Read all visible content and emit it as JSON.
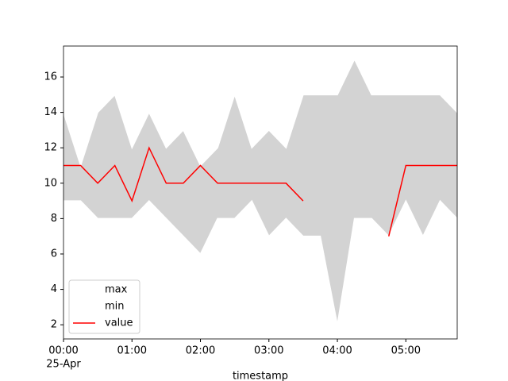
{
  "chart_data": {
    "type": "band_line",
    "x": [
      0,
      0.25,
      0.5,
      0.75,
      1,
      1.25,
      1.5,
      1.75,
      2,
      2.25,
      2.5,
      2.75,
      3,
      3.25,
      3.5,
      3.75,
      4,
      4.25,
      4.5,
      4.75,
      5,
      5.25,
      5.5,
      5.75
    ],
    "series": [
      {
        "name": "max",
        "color": "#ffffff",
        "values": [
          14,
          11,
          14,
          15,
          12,
          14,
          12,
          13,
          11,
          12,
          15,
          12,
          13,
          12,
          15,
          15,
          15,
          17,
          15,
          15,
          15,
          15,
          15,
          14
        ]
      },
      {
        "name": "min",
        "color": "#ffffff",
        "values": [
          9,
          9,
          8,
          8,
          8,
          9,
          8,
          7,
          6,
          8,
          8,
          9,
          7,
          8,
          7,
          7,
          2,
          8,
          8,
          7,
          9,
          7,
          9,
          8
        ]
      },
      {
        "name": "value",
        "color": "#ff0000",
        "values": [
          11,
          11,
          10,
          11,
          9,
          12,
          10,
          10,
          11,
          10,
          10,
          10,
          10,
          10,
          9,
          null,
          null,
          null,
          null,
          7,
          11,
          11,
          11,
          11
        ]
      }
    ],
    "fill_color": "#d3d3d3",
    "xlim": [
      0,
      5.75
    ],
    "xticks": [
      {
        "value": 0,
        "label": "00:00"
      },
      {
        "value": 1,
        "label": "01:00"
      },
      {
        "value": 2,
        "label": "02:00"
      },
      {
        "value": 3,
        "label": "03:00"
      },
      {
        "value": 4,
        "label": "04:00"
      },
      {
        "value": 5,
        "label": "05:00"
      }
    ],
    "x_date_label": "25-Apr",
    "ylim": [
      1.2,
      17.75
    ],
    "yticks": [
      2,
      4,
      6,
      8,
      10,
      12,
      14,
      16
    ],
    "xlabel": "timestamp",
    "legend": "lower left"
  }
}
